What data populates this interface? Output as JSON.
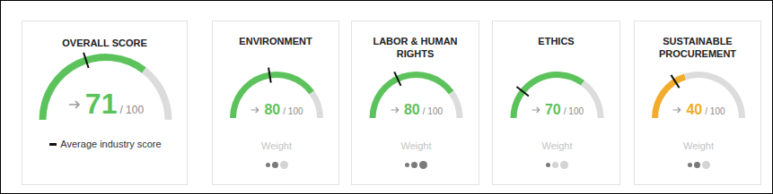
{
  "chart_data": [
    {
      "type": "gauge",
      "title": "OVERALL SCORE",
      "value": 71,
      "ylim": [
        0,
        100
      ],
      "max_label": "/ 100",
      "average_industry_score": 40,
      "color": "#5cc35c",
      "legend_label": "Average industry score"
    },
    {
      "type": "gauge",
      "title": "ENVIRONMENT",
      "value": 80,
      "ylim": [
        0,
        100
      ],
      "max_label": "/ 100",
      "average_industry_score": 45,
      "color": "#5cc35c",
      "weight_label": "Weight",
      "weight": 2,
      "weight_levels": 3
    },
    {
      "type": "gauge",
      "title": "LABOR & HUMAN RIGHTS",
      "value": 80,
      "ylim": [
        0,
        100
      ],
      "max_label": "/ 100",
      "average_industry_score": 36,
      "color": "#5cc35c",
      "weight_label": "Weight",
      "weight": 3,
      "weight_levels": 3
    },
    {
      "type": "gauge",
      "title": "ETHICS",
      "value": 70,
      "ylim": [
        0,
        100
      ],
      "max_label": "/ 100",
      "average_industry_score": 21,
      "color": "#5cc35c",
      "weight_label": "Weight",
      "weight": 1,
      "weight_levels": 3
    },
    {
      "type": "gauge",
      "title": "SUSTAINABLE PROCUREMENT",
      "value": 40,
      "ylim": [
        0,
        100
      ],
      "max_label": "/ 100",
      "average_industry_score": 32,
      "color": "#f0ac2a",
      "weight_label": "Weight",
      "weight": 2,
      "weight_levels": 3
    }
  ]
}
